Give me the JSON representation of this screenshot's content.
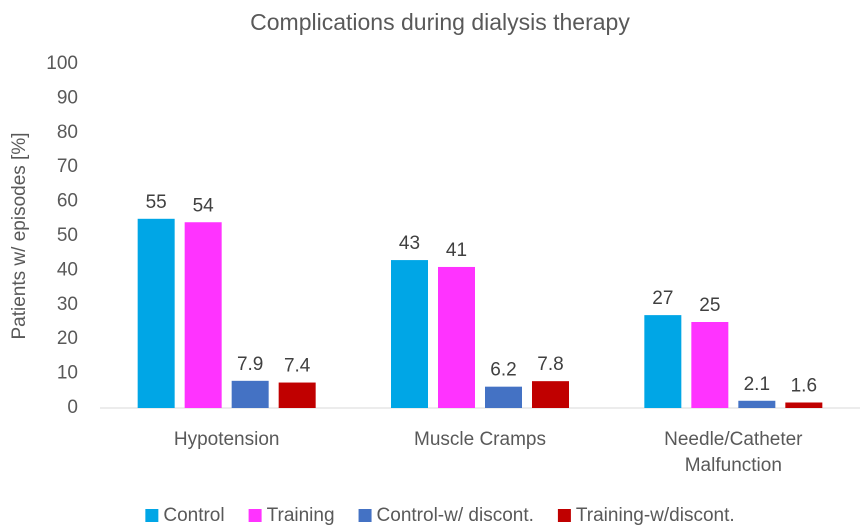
{
  "chart_data": {
    "type": "bar",
    "title": "Complications during dialysis therapy",
    "y_label": "Patients w/ episodes [%]",
    "categories": [
      "Hypotension",
      "Muscle Cramps",
      "Needle/Catheter Malfunction"
    ],
    "series": [
      {
        "name": "Control",
        "color": "#00a6e6",
        "values": [
          55,
          43,
          27
        ]
      },
      {
        "name": "Training",
        "color": "#ff33ff",
        "values": [
          54,
          41,
          25
        ]
      },
      {
        "name": "Control-w/ discont.",
        "color": "#4472c4",
        "values": [
          7.9,
          6.2,
          2.1
        ]
      },
      {
        "name": "Training-w/discont.",
        "color": "#c00000",
        "values": [
          7.4,
          7.8,
          1.6
        ]
      }
    ],
    "ylim": [
      0,
      100
    ],
    "yticks": [
      0,
      10,
      20,
      30,
      40,
      50,
      60,
      70,
      80,
      90,
      100
    ],
    "grid": false,
    "legend": "bottom"
  }
}
